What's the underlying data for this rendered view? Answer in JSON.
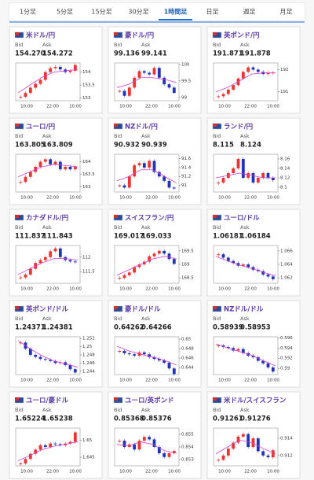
{
  "tabs": {
    "items": [
      "1分足",
      "5分足",
      "15分足",
      "30分足",
      "1時間足",
      "日足",
      "週足",
      "月足"
    ],
    "active": 4
  },
  "labels": {
    "bid": "Bid",
    "ask": "Ask"
  },
  "xlabels": [
    "10:00",
    "22:00",
    "10:00"
  ],
  "cards": [
    {
      "name": "米ドル/円",
      "bid": "154.270",
      "ask": "154.272",
      "ylim": [
        152.9,
        154.35
      ],
      "yticks": [
        154,
        153.5,
        153
      ],
      "closes": [
        153.05,
        153.2,
        153.4,
        153.55,
        153.7,
        154.0,
        154.15,
        154.2,
        154.1,
        154.0,
        154.05,
        154.27
      ],
      "ma": [
        153.2,
        153.5,
        153.8,
        154.0,
        154.05,
        154.1
      ]
    },
    {
      "name": "豪ドル/円",
      "bid": "99.136",
      "ask": "99.141",
      "ylim": [
        98.9,
        100.05
      ],
      "yticks": [
        100,
        99.5,
        99
      ],
      "closes": [
        99.2,
        99.05,
        99.3,
        99.6,
        99.8,
        99.75,
        99.7,
        99.9,
        99.6,
        99.4,
        99.3,
        99.14
      ],
      "ma": [
        99.3,
        99.4,
        99.6,
        99.6,
        99.55,
        99.45
      ]
    },
    {
      "name": "英ポンド/円",
      "bid": "191.871",
      "ask": "191.878",
      "ylim": [
        190.6,
        192.3
      ],
      "yticks": [
        192,
        191
      ],
      "closes": [
        190.8,
        190.9,
        191.1,
        191.3,
        191.6,
        191.9,
        192.1,
        192.0,
        191.9,
        191.8,
        191.85,
        191.87
      ],
      "ma": [
        191.0,
        191.2,
        191.5,
        191.8,
        191.85,
        191.85
      ]
    },
    {
      "name": "ユーロ/円",
      "bid": "163.805",
      "ask": "163.809",
      "ylim": [
        162.8,
        164.3
      ],
      "yticks": [
        164,
        163.5,
        163
      ],
      "closes": [
        163.2,
        163.4,
        163.6,
        163.8,
        164.0,
        164.1,
        163.9,
        164.0,
        163.7,
        163.8,
        163.7,
        163.81
      ],
      "ma": [
        163.4,
        163.6,
        163.8,
        163.9,
        163.85,
        163.8
      ]
    },
    {
      "name": "NZドル/円",
      "bid": "90.932",
      "ask": "90.939",
      "ylim": [
        90.85,
        91.7
      ],
      "yticks": [
        91.6,
        91.4,
        91.2,
        91
      ],
      "closes": [
        91.0,
        90.95,
        91.2,
        91.45,
        91.5,
        91.4,
        91.55,
        91.3,
        91.2,
        91.1,
        90.95,
        90.93
      ],
      "ma": [
        91.1,
        91.2,
        91.35,
        91.35,
        91.2,
        91.05
      ]
    },
    {
      "name": "ランド/円",
      "bid": "8.115",
      "ask": "8.124",
      "ylim": [
        8.09,
        8.17
      ],
      "yticks": [
        8.16,
        8.14,
        8.12,
        8.1
      ],
      "closes": [
        8.11,
        8.12,
        8.13,
        8.14,
        8.16,
        8.12,
        8.13,
        8.11,
        8.12,
        8.13,
        8.12,
        8.115
      ],
      "ma": [
        8.12,
        8.125,
        8.13,
        8.125,
        8.12,
        8.12
      ]
    },
    {
      "name": "カナダドル/円",
      "bid": "111.837",
      "ask": "111.843",
      "ylim": [
        111.1,
        112.4
      ],
      "yticks": [
        112,
        111.5
      ],
      "closes": [
        111.3,
        111.4,
        111.6,
        111.8,
        111.9,
        112.0,
        112.2,
        112.3,
        112.0,
        111.9,
        111.85,
        111.84
      ],
      "ma": [
        111.4,
        111.6,
        111.8,
        111.95,
        111.95,
        111.9
      ]
    },
    {
      "name": "スイスフラン/円",
      "bid": "169.017",
      "ask": "169.033",
      "ylim": [
        168.3,
        169.7
      ],
      "yticks": [
        169.5,
        169,
        168.5
      ],
      "closes": [
        168.5,
        168.6,
        168.7,
        168.9,
        169.0,
        169.1,
        169.3,
        169.4,
        169.5,
        169.4,
        169.2,
        169.02
      ],
      "ma": [
        168.6,
        168.8,
        169.0,
        169.2,
        169.3,
        169.2
      ]
    },
    {
      "name": "ユーロ/ドル",
      "bid": "1.06181",
      "ask": "1.06184",
      "ylim": [
        1.0612,
        1.0668
      ],
      "yticks": [
        1.066,
        1.064,
        1.062
      ],
      "closes": [
        1.0655,
        1.065,
        1.0645,
        1.0642,
        1.0638,
        1.064,
        1.0636,
        1.0632,
        1.063,
        1.0625,
        1.0622,
        1.06181
      ],
      "ma": [
        1.0652,
        1.0645,
        1.0639,
        1.0634,
        1.0628,
        1.0623
      ]
    },
    {
      "name": "英ポンド/ドル",
      "bid": "1.24371",
      "ask": "1.24381",
      "ylim": [
        1.2432,
        1.2524
      ],
      "yticks": [
        1.252,
        1.25,
        1.248,
        1.246,
        1.244
      ],
      "closes": [
        1.251,
        1.2495,
        1.248,
        1.2475,
        1.247,
        1.2468,
        1.2465,
        1.246,
        1.2462,
        1.2455,
        1.2445,
        1.24371
      ],
      "ma": [
        1.2515,
        1.2495,
        1.2478,
        1.2465,
        1.2458,
        1.245
      ]
    },
    {
      "name": "豪ドル/ドル",
      "bid": "0.64262",
      "ask": "0.64266",
      "ylim": [
        0.6425,
        0.6505
      ],
      "yticks": [
        0.65,
        0.648,
        0.646,
        0.644
      ],
      "closes": [
        0.6475,
        0.647,
        0.6468,
        0.6465,
        0.6472,
        0.6468,
        0.6462,
        0.6458,
        0.6455,
        0.645,
        0.6438,
        0.64262
      ],
      "ma": [
        0.6485,
        0.6475,
        0.6468,
        0.6462,
        0.6455,
        0.6445
      ]
    },
    {
      "name": "NZドル/ドル",
      "bid": "0.58939",
      "ask": "0.58953",
      "ylim": [
        0.5888,
        0.5962
      ],
      "yticks": [
        0.596,
        0.594,
        0.592,
        0.59
      ],
      "closes": [
        0.5945,
        0.5942,
        0.594,
        0.5935,
        0.5938,
        0.593,
        0.5925,
        0.5922,
        0.5915,
        0.591,
        0.5902,
        0.58939
      ],
      "ma": [
        0.5948,
        0.594,
        0.5933,
        0.5926,
        0.5915,
        0.5905
      ]
    },
    {
      "name": "ユーロ/豪ドル",
      "bid": "1.65224",
      "ask": "1.65238",
      "ylim": [
        1.6425,
        1.6535
      ],
      "yticks": [
        1.65,
        1.645
      ],
      "closes": [
        1.6432,
        1.6445,
        1.646,
        1.6472,
        1.6485,
        1.648,
        1.649,
        1.6488,
        1.6485,
        1.649,
        1.6495,
        1.65224
      ],
      "ma": [
        1.644,
        1.6455,
        1.6472,
        1.6482,
        1.6488,
        1.6495
      ]
    },
    {
      "name": "ユーロ/英ポンド",
      "bid": "0.85368",
      "ask": "0.85376",
      "ylim": [
        0.8525,
        0.8555
      ],
      "yticks": [
        0.855,
        0.854,
        0.853
      ],
      "closes": [
        0.8545,
        0.854,
        0.8542,
        0.8538,
        0.8545,
        0.8548,
        0.8546,
        0.854,
        0.8535,
        0.8532,
        0.8535,
        0.85368
      ],
      "ma": [
        0.8542,
        0.8541,
        0.8544,
        0.8542,
        0.8537,
        0.8535
      ]
    },
    {
      "name": "米ドル/スイスフラン",
      "bid": "0.91261",
      "ask": "0.91276",
      "ylim": [
        0.9108,
        0.9152
      ],
      "yticks": [
        0.914,
        0.912
      ],
      "closes": [
        0.9115,
        0.912,
        0.9128,
        0.9135,
        0.9142,
        0.9145,
        0.913,
        0.914,
        0.9125,
        0.912,
        0.9118,
        0.91261
      ],
      "ma": [
        0.9122,
        0.913,
        0.9138,
        0.9135,
        0.9128,
        0.9122
      ]
    }
  ]
}
